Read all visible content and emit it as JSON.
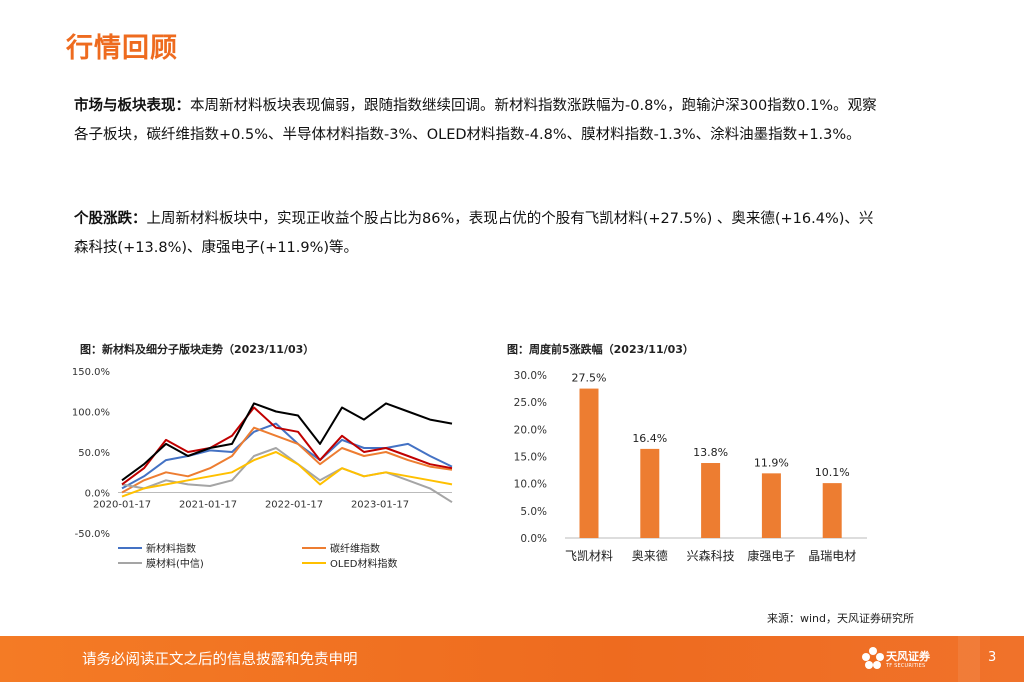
{
  "page": {
    "title": "行情回顾",
    "market": {
      "label": "市场与板块表现：",
      "text": "本周新材料板块表现偏弱，跟随指数继续回调。新材料指数涨跌幅为-0.8%，跑输沪深300指数0.1%。观察各子板块，碳纤维指数+0.5%、半导体材料指数-3%、OLED材料指数-4.8%、膜材料指数-1.3%、涂料油墨指数+1.3%。"
    },
    "stocks": {
      "label": "个股涨跌：",
      "text": "上周新材料板块中，实现正收益个股占比为86%，表现占优的个股有飞凯材料(+27.5%) 、奥来德(+16.4%)、兴森科技(+13.8%)、康强电子(+11.9%)等。"
    },
    "source": "来源：wind，天风证券研究所",
    "footer": {
      "disclaimer": "请务必阅读正文之后的信息披露和免责申明",
      "logo_name": "天风证券",
      "logo_sub": "TF SECURITIES",
      "page_number": "3"
    }
  },
  "chart_data": [
    {
      "type": "line",
      "title": "图：新材料及细分子版块走势（2023/11/03）",
      "x_ticks": [
        "2020-01-17",
        "2021-01-17",
        "2022-01-17",
        "2023-01-17"
      ],
      "y_ticks": [
        "150.0%",
        "100.0%",
        "50.0%",
        "0.0%",
        "-50.0%"
      ],
      "ylim": [
        -50,
        150
      ],
      "x": [
        "2020-01",
        "2020-04",
        "2020-07",
        "2020-10",
        "2021-01",
        "2021-04",
        "2021-07",
        "2021-10",
        "2022-01",
        "2022-04",
        "2022-07",
        "2022-10",
        "2023-01",
        "2023-04",
        "2023-07",
        "2023-10"
      ],
      "legend_placement": "bottom",
      "series": [
        {
          "name": "新材料指数",
          "color": "#4472c4",
          "values": [
            5,
            20,
            40,
            45,
            52,
            50,
            75,
            85,
            60,
            40,
            65,
            55,
            55,
            60,
            45,
            32
          ]
        },
        {
          "name": "碳纤维指数",
          "color": "#ed7d31",
          "values": [
            0,
            15,
            25,
            20,
            30,
            45,
            80,
            70,
            60,
            35,
            55,
            45,
            50,
            40,
            32,
            28
          ]
        },
        {
          "name": "膜材料(中信)",
          "color": "#a5a5a5",
          "values": [
            10,
            5,
            15,
            10,
            8,
            15,
            45,
            55,
            35,
            15,
            30,
            20,
            25,
            15,
            5,
            -12
          ]
        },
        {
          "name": "OLED材料指数",
          "color": "#ffc000",
          "values": [
            -5,
            5,
            10,
            15,
            20,
            25,
            40,
            50,
            35,
            10,
            30,
            20,
            25,
            20,
            15,
            10
          ]
        },
        {
          "name": "",
          "color": "#c00000",
          "values": [
            10,
            30,
            65,
            50,
            55,
            70,
            105,
            80,
            75,
            40,
            70,
            50,
            55,
            45,
            35,
            30
          ]
        },
        {
          "name": "",
          "color": "#000000",
          "values": [
            15,
            35,
            60,
            45,
            55,
            60,
            110,
            100,
            95,
            60,
            105,
            90,
            110,
            100,
            90,
            85
          ]
        }
      ]
    },
    {
      "type": "bar",
      "title": "图：周度前5涨跌幅（2023/11/03）",
      "categories": [
        "飞凯材料",
        "奥来德",
        "兴森科技",
        "康强电子",
        "晶瑞电材"
      ],
      "values": [
        27.5,
        16.4,
        13.8,
        11.9,
        10.1
      ],
      "value_labels": [
        "27.5%",
        "16.4%",
        "13.8%",
        "11.9%",
        "10.1%"
      ],
      "y_ticks": [
        "30.0%",
        "25.0%",
        "20.0%",
        "15.0%",
        "10.0%",
        "5.0%",
        "0.0%"
      ],
      "ylim": [
        0,
        30
      ],
      "color": "#ed7d31"
    }
  ]
}
